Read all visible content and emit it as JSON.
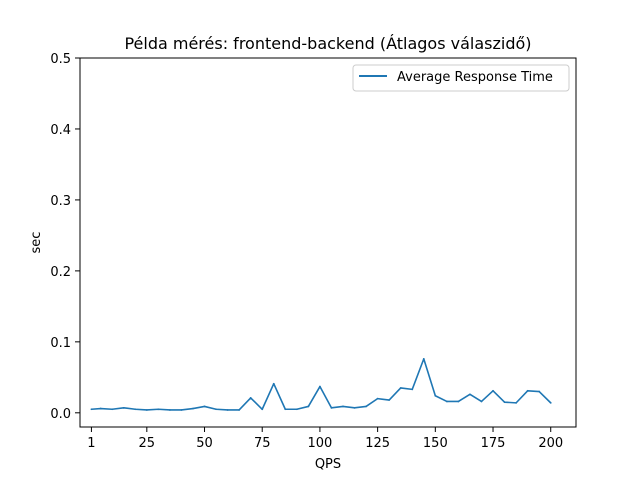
{
  "chart_data": {
    "type": "line",
    "title": "Példa mérés: frontend-backend (Átlagos válaszidő)",
    "xlabel": "QPS",
    "ylabel": "sec",
    "xlim": [
      -3.95,
      210.95
    ],
    "ylim": [
      -0.02,
      0.5
    ],
    "xticks": [
      1,
      25,
      50,
      75,
      100,
      125,
      150,
      175,
      200
    ],
    "yticks": [
      0.0,
      0.1,
      0.2,
      0.3,
      0.4,
      0.5
    ],
    "ytick_labels": [
      "0.0",
      "0.1",
      "0.2",
      "0.3",
      "0.4",
      "0.5"
    ],
    "grid": false,
    "legend_position": "top-right",
    "series": [
      {
        "name": "Average Response Time",
        "color": "#1f77b4",
        "x": [
          1,
          5,
          10,
          15,
          20,
          25,
          30,
          35,
          40,
          45,
          50,
          55,
          60,
          65,
          70,
          75,
          80,
          85,
          90,
          95,
          100,
          105,
          110,
          115,
          120,
          125,
          130,
          135,
          140,
          145,
          150,
          155,
          160,
          165,
          170,
          175,
          180,
          185,
          190,
          195,
          200
        ],
        "values": [
          0.005,
          0.006,
          0.005,
          0.007,
          0.005,
          0.004,
          0.005,
          0.004,
          0.004,
          0.006,
          0.009,
          0.005,
          0.004,
          0.004,
          0.021,
          0.005,
          0.041,
          0.005,
          0.005,
          0.009,
          0.037,
          0.007,
          0.009,
          0.007,
          0.009,
          0.02,
          0.018,
          0.035,
          0.033,
          0.076,
          0.024,
          0.016,
          0.016,
          0.026,
          0.016,
          0.031,
          0.015,
          0.014,
          0.031,
          0.03,
          0.014
        ]
      }
    ]
  }
}
